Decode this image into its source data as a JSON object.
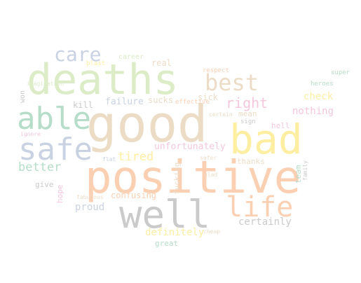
{
  "cloud": {
    "words": [
      {
        "text": "good",
        "color": "#ecdcc6"
      },
      {
        "text": "positive",
        "color": "#fbcfb2"
      },
      {
        "text": "deaths",
        "color": "#dcecc6"
      },
      {
        "text": "well",
        "color": "#cacaca"
      },
      {
        "text": "bad",
        "color": "#fdeea2"
      },
      {
        "text": "able",
        "color": "#b5ddc9"
      },
      {
        "text": "safe",
        "color": "#c9d2e2"
      },
      {
        "text": "life",
        "color": "#fbcfb2"
      },
      {
        "text": "best",
        "color": "#ecdcc6"
      },
      {
        "text": "care",
        "color": "#c9d2e2"
      },
      {
        "text": "right",
        "color": "#f4c7dd"
      },
      {
        "text": "better",
        "color": "#b5ddc9"
      },
      {
        "text": "tired",
        "color": "#fdeea2"
      },
      {
        "text": "unfortunately",
        "color": "#f4c7dd"
      },
      {
        "text": "certainly",
        "color": "#cacaca"
      },
      {
        "text": "definitely",
        "color": "#fdeea2"
      },
      {
        "text": "proud",
        "color": "#c9d2e2"
      },
      {
        "text": "confusing",
        "color": "#fbcfb2"
      },
      {
        "text": "nothing",
        "color": "#f4c7dd"
      },
      {
        "text": "check",
        "color": "#fdeea2"
      },
      {
        "text": "failure",
        "color": "#c9d2e2"
      },
      {
        "text": "sucks",
        "color": "#ecdcc6"
      },
      {
        "text": "kill",
        "color": "#cacaca"
      },
      {
        "text": "real",
        "color": "#ecdcc6"
      },
      {
        "text": "career",
        "color": "#dcecc6"
      },
      {
        "text": "blast",
        "color": "#fdeea2"
      },
      {
        "text": "respect",
        "color": "#fbcfb2"
      },
      {
        "text": "super",
        "color": "#b5ddc9"
      },
      {
        "text": "heroes",
        "color": "#b5ddc9"
      },
      {
        "text": "sick",
        "color": "#ecdcc6"
      },
      {
        "text": "effective",
        "color": "#fbcfb2"
      },
      {
        "text": "mean",
        "color": "#ecdcc6"
      },
      {
        "text": "sign",
        "color": "#cacaca"
      },
      {
        "text": "hell",
        "color": "#f4c7dd"
      },
      {
        "text": "thanks",
        "color": "#ecdcc6"
      },
      {
        "text": "team",
        "color": "#b5ddc9"
      },
      {
        "text": "family",
        "color": "#cacaca"
      },
      {
        "text": "hope",
        "color": "#f4c7dd"
      },
      {
        "text": "give",
        "color": "#cacaca"
      },
      {
        "text": "fabulous",
        "color": "#ecdcc6"
      },
      {
        "text": "fucking",
        "color": "#ecdcc6"
      },
      {
        "text": "glad",
        "color": "#ecdcc6"
      },
      {
        "text": "flat",
        "color": "#c9d2e2"
      },
      {
        "text": "safer",
        "color": "#ecdcc6"
      },
      {
        "text": "certain",
        "color": "#ecdcc6"
      },
      {
        "text": "great",
        "color": "#b5ddc9"
      },
      {
        "text": "cheap",
        "color": "#ecdcc6"
      },
      {
        "text": "ignore",
        "color": "#f4c7dd"
      },
      {
        "text": "imagination",
        "color": "#dcecc6"
      },
      {
        "text": "won",
        "color": "#cacaca"
      }
    ]
  }
}
